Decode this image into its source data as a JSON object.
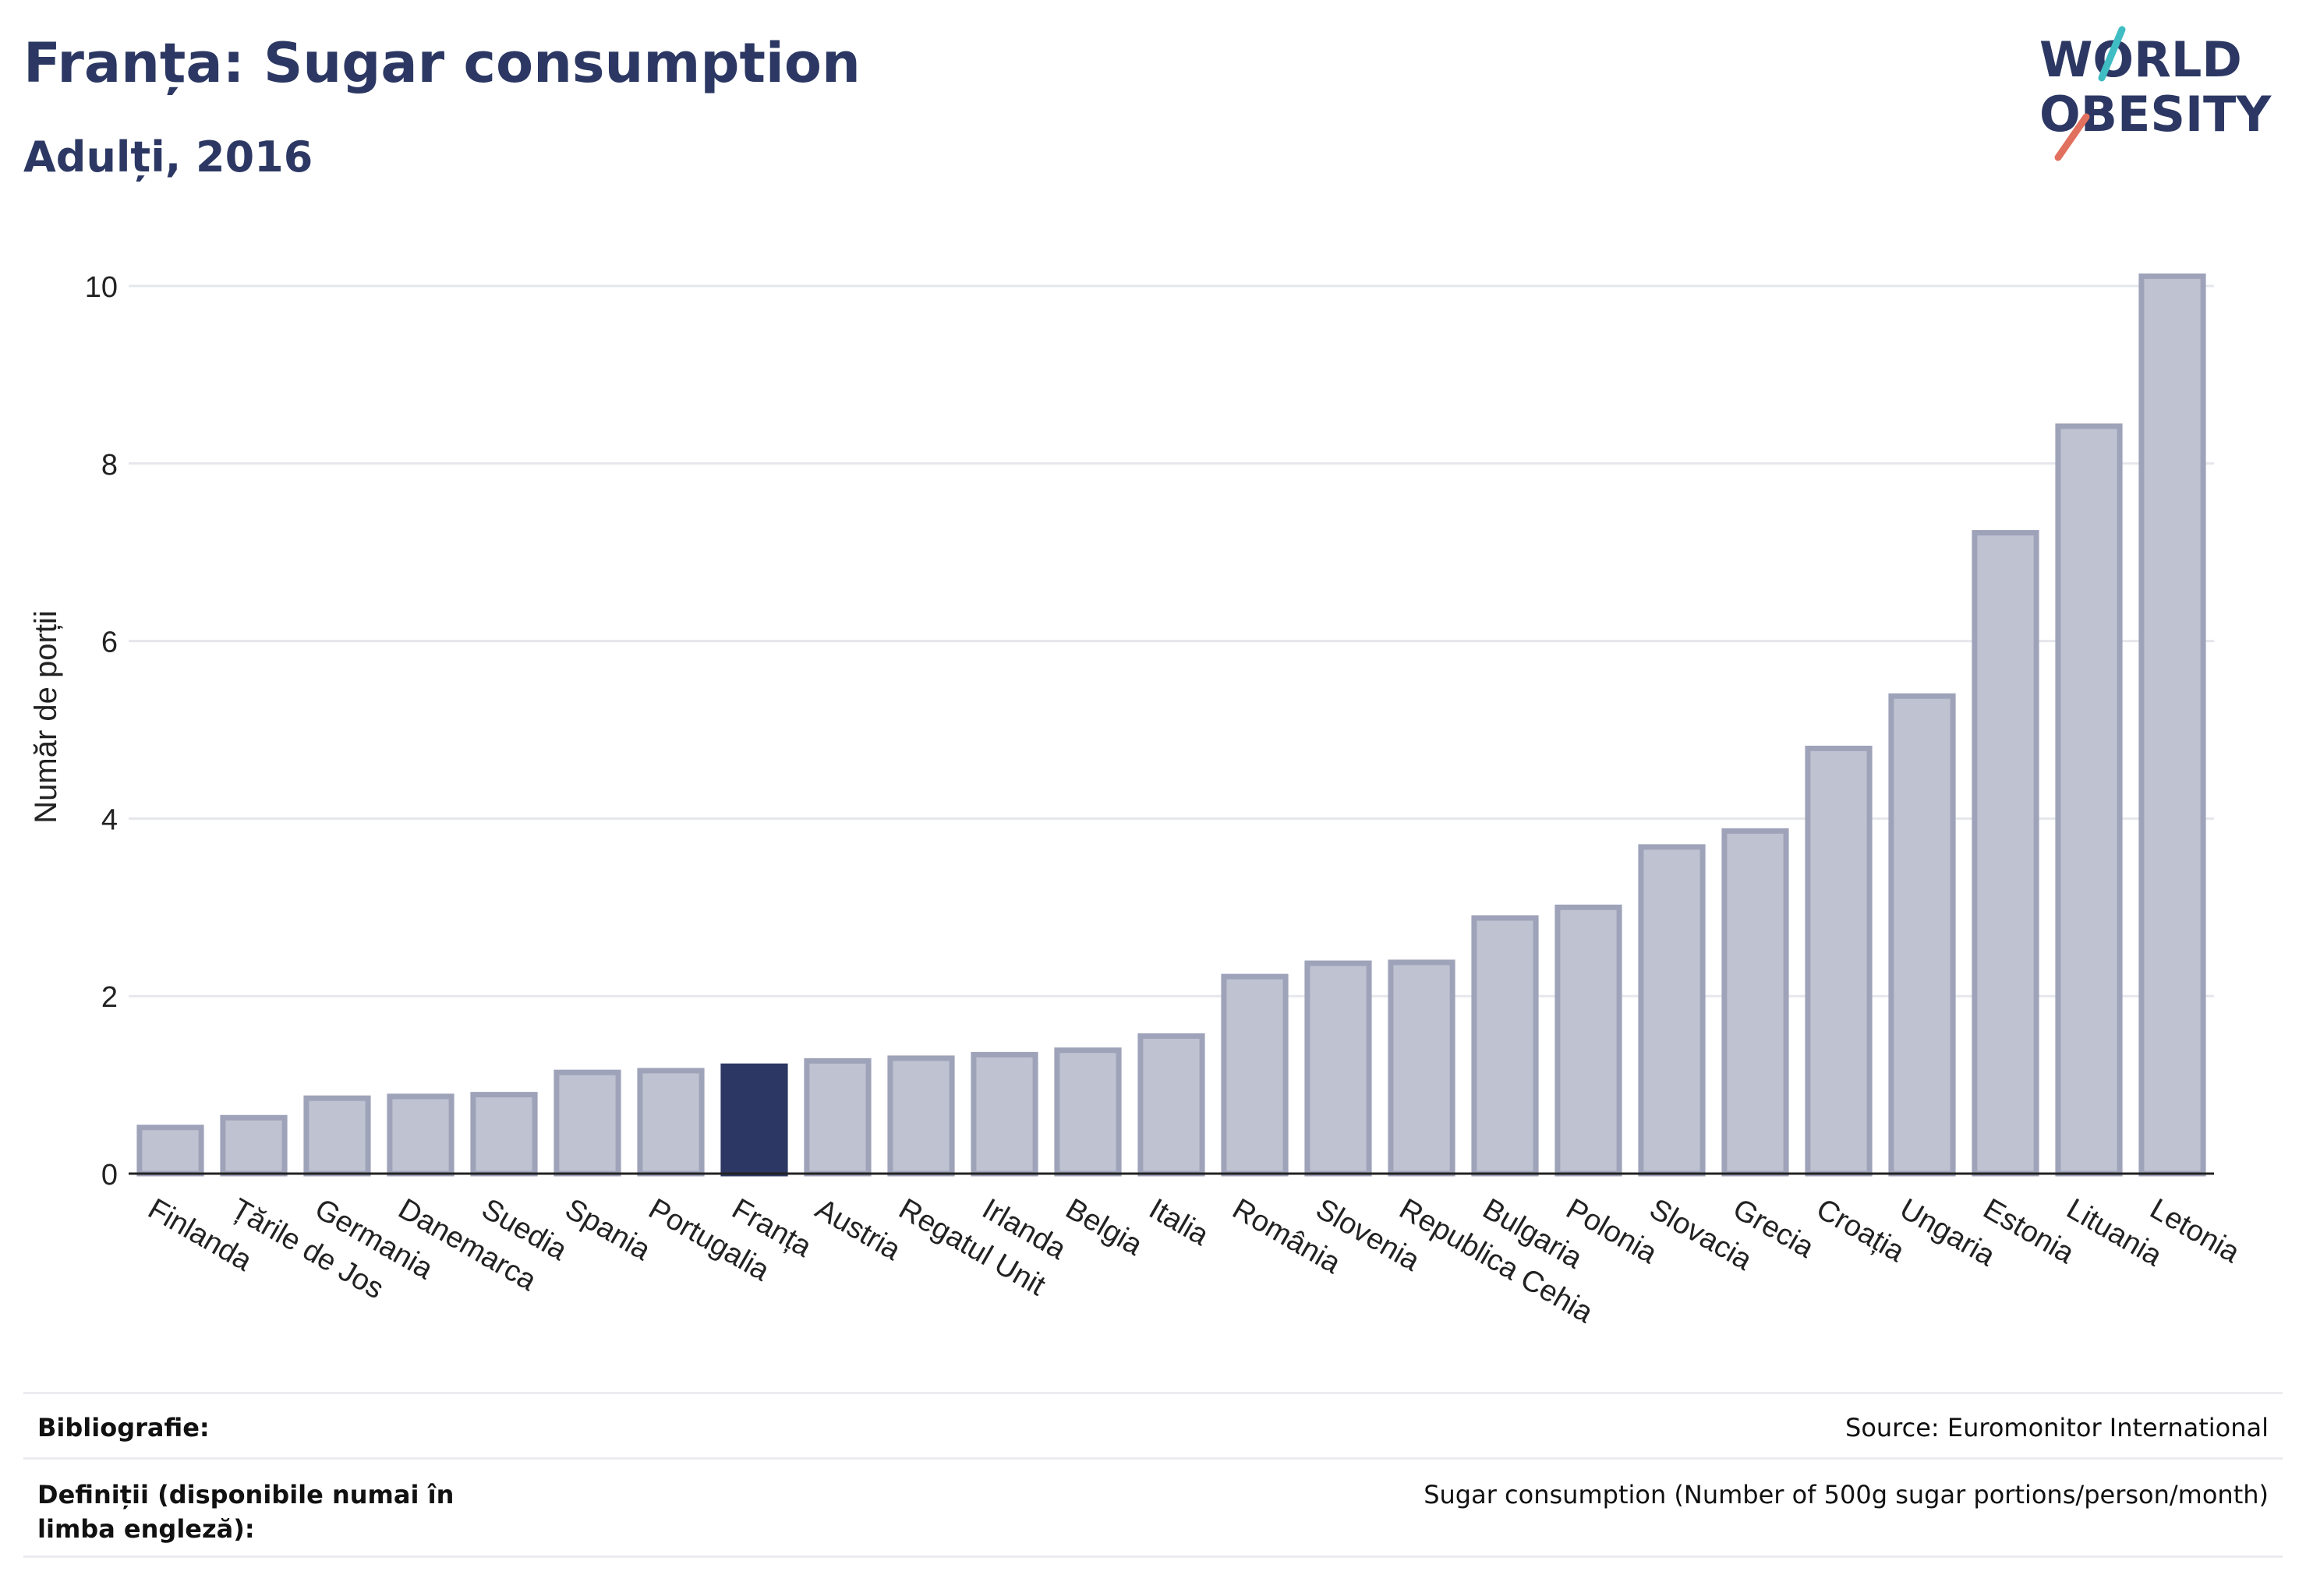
{
  "header": {
    "title": "Franța: Sugar consumption",
    "subtitle": "Adulți, 2016"
  },
  "logo": {
    "line1": "WORLD",
    "line2": "OBESITY"
  },
  "colors": {
    "highlight": "#2c3863",
    "bar_fill": "#bfc2d1",
    "bar_stroke": "#9ea3b9",
    "grid": "#e6e7ec",
    "axis": "#222222",
    "logo_teal": "#3fbdc2",
    "logo_coral": "#e1705f"
  },
  "chart_data": {
    "type": "bar",
    "ylabel": "Număr de porții",
    "ylim": [
      0,
      10.5
    ],
    "yticks": [
      0,
      2,
      4,
      6,
      8,
      10
    ],
    "grid": true,
    "highlight_category": "Franța",
    "categories": [
      "Finlanda",
      "Țările de Jos",
      "Germania",
      "Danemarca",
      "Suedia",
      "Spania",
      "Portugalia",
      "Franța",
      "Austria",
      "Regatul Unit",
      "Irlanda",
      "Belgia",
      "Italia",
      "România",
      "Slovenia",
      "Republica Cehia",
      "Bulgaria",
      "Polonia",
      "Slovacia",
      "Grecia",
      "Croația",
      "Ungaria",
      "Estonia",
      "Lituania",
      "Letonia"
    ],
    "values": [
      0.52,
      0.63,
      0.85,
      0.87,
      0.89,
      1.14,
      1.16,
      1.21,
      1.27,
      1.3,
      1.34,
      1.39,
      1.55,
      2.22,
      2.37,
      2.38,
      2.88,
      3.0,
      3.68,
      3.86,
      4.79,
      5.38,
      7.22,
      8.42,
      10.11
    ]
  },
  "footer": {
    "bibliography_label": "Bibliografie:",
    "bibliography_value": "Source: Euromonitor International",
    "definitions_label": "Definiții (disponibile numai în limba engleză):",
    "definitions_value": "Sugar consumption (Number of 500g sugar portions/person/month)"
  }
}
